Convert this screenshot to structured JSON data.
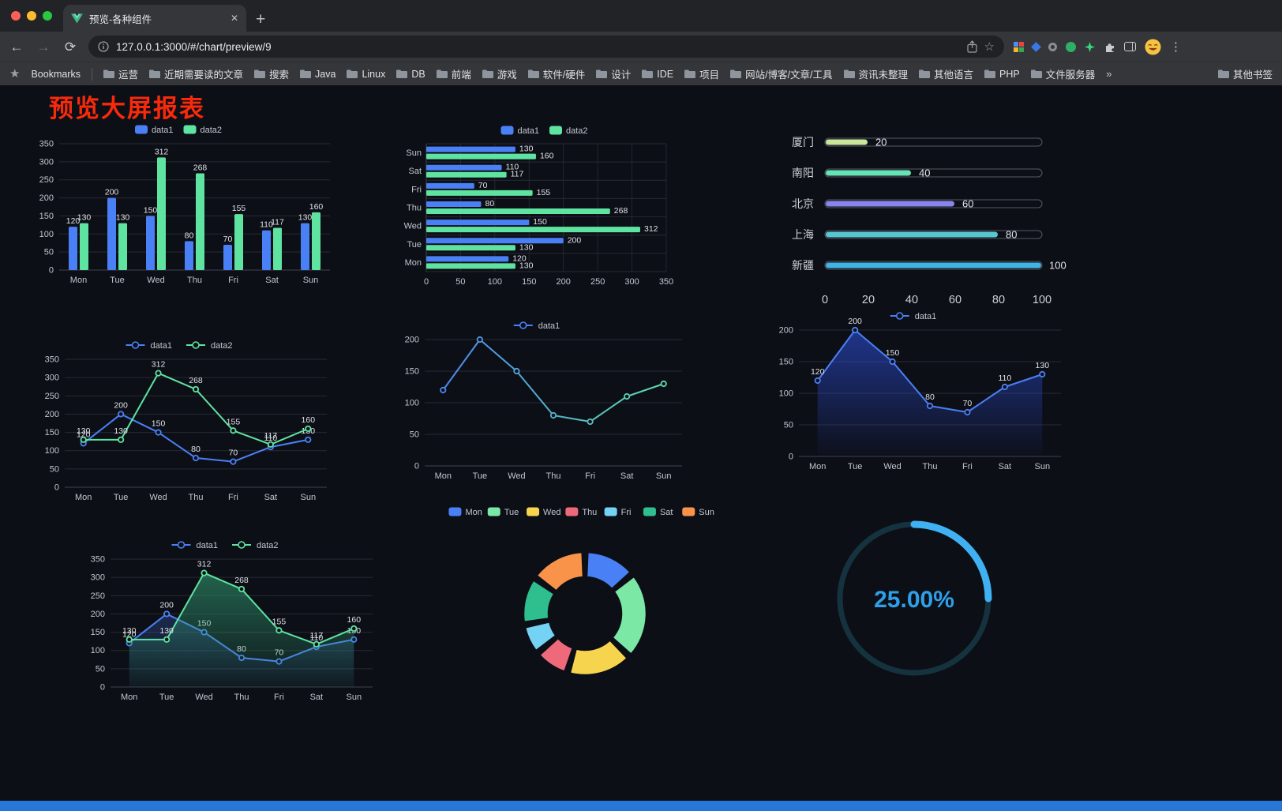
{
  "browser": {
    "tab": {
      "title": "预览-各种组件"
    },
    "new_tab_label": "+",
    "tab_close_label": "✕",
    "address": {
      "url": "127.0.0.1:3000/#/chart/preview/9"
    },
    "bookmarks_label": "Bookmarks",
    "bookmarks": [
      "运营",
      "近期需要读的文章",
      "搜索",
      "Java",
      "Linux",
      "DB",
      "前端",
      "游戏",
      "软件/硬件",
      "设计",
      "IDE",
      "项目",
      "网站/博客/文章/工具",
      "资讯未整理",
      "其他语言",
      "PHP",
      "文件服务器"
    ],
    "bookmarks_overflow": "»",
    "other_bookmarks": "其他书签"
  },
  "page": {
    "title": "预览大屏报表"
  },
  "colors": {
    "data1": "#4a80f5",
    "data2": "#5fe3a1",
    "title_red": "#f92a0b"
  },
  "chart_data": [
    {
      "type": "bar",
      "orientation": "vertical",
      "categories": [
        "Mon",
        "Tue",
        "Wed",
        "Thu",
        "Fri",
        "Sat",
        "Sun"
      ],
      "series": [
        {
          "name": "data1",
          "color": "#4a80f5",
          "values": [
            120,
            200,
            150,
            80,
            70,
            110,
            130
          ]
        },
        {
          "name": "data2",
          "color": "#5fe3a1",
          "values": [
            130,
            130,
            312,
            268,
            155,
            117,
            160
          ]
        }
      ],
      "ylim": [
        0,
        350
      ],
      "ystep": 50,
      "legend": [
        "data1",
        "data2"
      ],
      "legend_position": "top",
      "grid": true,
      "show_labels": true
    },
    {
      "type": "bar",
      "orientation": "horizontal",
      "categories": [
        "Mon",
        "Tue",
        "Wed",
        "Thu",
        "Fri",
        "Sat",
        "Sun"
      ],
      "series": [
        {
          "name": "data1",
          "color": "#4a80f5",
          "values": [
            120,
            200,
            150,
            80,
            70,
            110,
            130
          ]
        },
        {
          "name": "data2",
          "color": "#5fe3a1",
          "values": [
            130,
            130,
            312,
            268,
            155,
            117,
            160
          ]
        }
      ],
      "xlim": [
        0,
        350
      ],
      "xstep": 50,
      "legend": [
        "data1",
        "data2"
      ],
      "legend_position": "top",
      "grid": true,
      "show_labels": true
    },
    {
      "type": "progress-bars",
      "items": [
        {
          "label": "厦门",
          "value": 20,
          "color": "#c9e79a"
        },
        {
          "label": "南阳",
          "value": 40,
          "color": "#66e2b5"
        },
        {
          "label": "北京",
          "value": 60,
          "color": "#8a84ee"
        },
        {
          "label": "上海",
          "value": 80,
          "color": "#56c8cf"
        },
        {
          "label": "新疆",
          "value": 100,
          "color": "#41b4e6"
        }
      ],
      "xlim": [
        0,
        100
      ],
      "xticks": [
        0,
        20,
        40,
        60,
        80,
        100
      ]
    },
    {
      "type": "line",
      "categories": [
        "Mon",
        "Tue",
        "Wed",
        "Thu",
        "Fri",
        "Sat",
        "Sun"
      ],
      "series": [
        {
          "name": "data1",
          "color": "#4a80f5",
          "values": [
            120,
            200,
            150,
            80,
            70,
            110,
            130
          ]
        },
        {
          "name": "data2",
          "color": "#5fe3a1",
          "values": [
            130,
            130,
            312,
            268,
            155,
            117,
            160
          ]
        }
      ],
      "ylim": [
        0,
        350
      ],
      "ystep": 50,
      "legend": [
        "data1",
        "data2"
      ],
      "legend_position": "top",
      "grid": true,
      "show_labels": true
    },
    {
      "type": "line",
      "categories": [
        "Mon",
        "Tue",
        "Wed",
        "Thu",
        "Fri",
        "Sat",
        "Sun"
      ],
      "series": [
        {
          "name": "data1",
          "gradient": [
            "#4a80f5",
            "#5fe3a1"
          ],
          "values": [
            120,
            200,
            150,
            80,
            70,
            110,
            130
          ]
        }
      ],
      "ylim": [
        0,
        200
      ],
      "ystep": 50,
      "legend": [
        "data1"
      ],
      "legend_position": "top",
      "grid": true,
      "show_labels": false
    },
    {
      "type": "line",
      "categories": [
        "Mon",
        "Tue",
        "Wed",
        "Thu",
        "Fri",
        "Sat",
        "Sun"
      ],
      "series": [
        {
          "name": "data1",
          "color": "#4a80f5",
          "area": [
            "rgba(47,84,235,0.55)",
            "rgba(47,84,235,0.02)"
          ],
          "values": [
            120,
            200,
            150,
            80,
            70,
            110,
            130
          ]
        }
      ],
      "ylim": [
        0,
        200
      ],
      "ystep": 50,
      "legend": [
        "data1"
      ],
      "legend_position": "top",
      "grid": true,
      "show_labels": true
    },
    {
      "type": "line",
      "categories": [
        "Mon",
        "Tue",
        "Wed",
        "Thu",
        "Fri",
        "Sat",
        "Sun"
      ],
      "series": [
        {
          "name": "data1",
          "color": "#4a80f5",
          "area": [
            "rgba(74,128,245,0.25)",
            "rgba(74,128,245,0.02)"
          ],
          "values": [
            120,
            200,
            150,
            80,
            70,
            110,
            130
          ]
        },
        {
          "name": "data2",
          "color": "#5fe3a1",
          "area": [
            "rgba(52,168,120,0.55)",
            "rgba(52,168,120,0.05)"
          ],
          "values": [
            130,
            130,
            312,
            268,
            155,
            117,
            160
          ]
        }
      ],
      "ylim": [
        0,
        350
      ],
      "ystep": 50,
      "legend": [
        "data1",
        "data2"
      ],
      "legend_position": "top",
      "grid": true,
      "show_labels": true
    },
    {
      "type": "pie",
      "donut": true,
      "categories": [
        "Mon",
        "Tue",
        "Wed",
        "Thu",
        "Fri",
        "Sat",
        "Sun"
      ],
      "values": [
        120,
        200,
        150,
        80,
        70,
        110,
        130
      ],
      "colors": [
        "#4a80f5",
        "#7ce8a5",
        "#f7d44d",
        "#ee6a7b",
        "#74d2f5",
        "#2fbf8f",
        "#f9934a"
      ],
      "legend_position": "top"
    },
    {
      "type": "gauge",
      "value": 25,
      "label": "25.00%",
      "color": "#3fb0f2",
      "track_color": "#15333e",
      "text_color": "#2f9fe8"
    }
  ]
}
